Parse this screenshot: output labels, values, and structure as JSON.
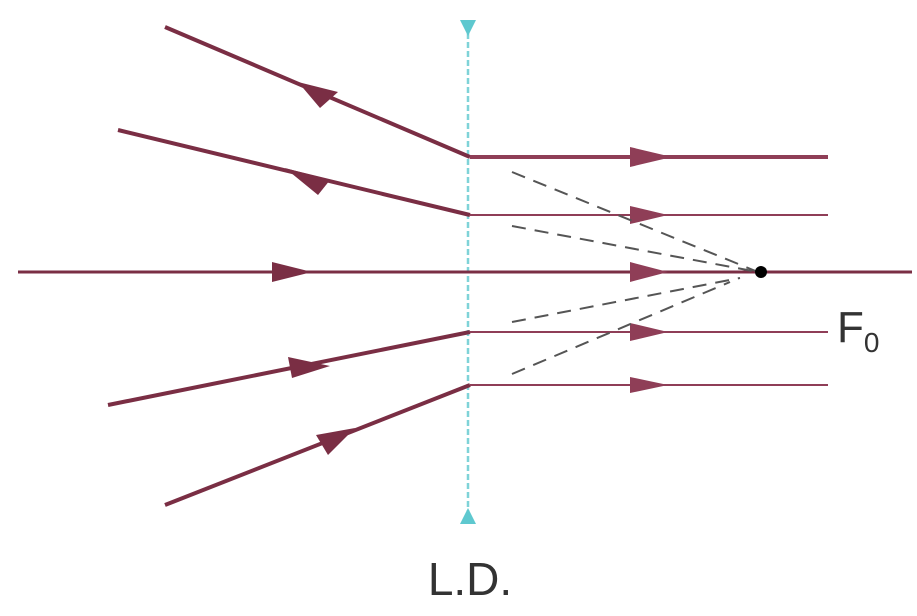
{
  "diagram": {
    "lens_label": "L.D.",
    "focus_label_main": "F",
    "focus_label_sub": "0"
  },
  "colors": {
    "ray": "#7a2e44",
    "ray_light": "#8f3e57",
    "lens": "#7fd3d8",
    "lens_arrow": "#5ec8cf",
    "dashed": "#555555",
    "focus_point": "#000000",
    "text": "#333333"
  }
}
